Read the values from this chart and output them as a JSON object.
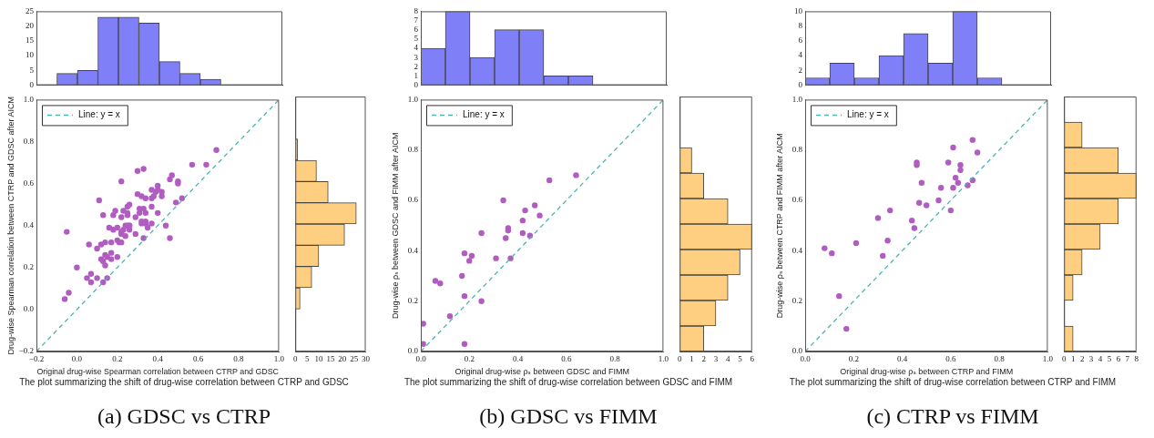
{
  "chart_data": [
    {
      "type": "histogram",
      "bins": [
        -0.2,
        -0.1,
        0.0,
        0.1,
        0.2,
        0.3,
        0.4,
        0.5,
        0.6,
        0.7
      ],
      "values": [
        0,
        4,
        5,
        23,
        23,
        21,
        8,
        4,
        2
      ],
      "color": "#7f7ff7",
      "xlim": [
        -0.2,
        1.0
      ],
      "ylim": [
        0,
        25
      ],
      "yticks": [
        0,
        5,
        10,
        15,
        20,
        25
      ],
      "tick_labels": "y"
    },
    {
      "type": "scatter",
      "xlabel": "Original drug-wise Spearman correlation between CTRP and GDSC",
      "ylabel": "Drug-wise Spearman correlation between CTRP and GDSC after AICM",
      "xlim": [
        -0.2,
        1.0
      ],
      "ylim": [
        -0.2,
        1.0
      ],
      "xticks": [
        {
          "value": -0.2,
          "label": "−0.2"
        },
        {
          "value": 0,
          "label": "0.0"
        },
        0.2,
        0.4,
        0.6,
        0.8,
        {
          "value": 1,
          "label": "1.0"
        }
      ],
      "yticks": [
        {
          "value": -0.2,
          "label": "−0.2"
        },
        {
          "value": 0,
          "label": "0.0"
        },
        0.2,
        0.4,
        0.6,
        0.8,
        {
          "value": 1,
          "label": "1.0"
        }
      ],
      "legend": "top left",
      "series": [
        {
          "type": "scatter",
          "color": "#b05cc0",
          "marker": "circle",
          "x": [
            -0.06,
            -0.04,
            -0.05,
            0.0,
            0.05,
            0.07,
            0.07,
            0.06,
            0.1,
            0.1,
            0.12,
            0.11,
            0.13,
            0.14,
            0.12,
            0.13,
            0.13,
            0.14,
            0.14,
            0.15,
            0.15,
            0.16,
            0.17,
            0.17,
            0.17,
            0.18,
            0.18,
            0.19,
            0.2,
            0.2,
            0.2,
            0.21,
            0.22,
            0.22,
            0.22,
            0.22,
            0.22,
            0.23,
            0.23,
            0.24,
            0.24,
            0.25,
            0.25,
            0.25,
            0.25,
            0.26,
            0.26,
            0.26,
            0.26,
            0.29,
            0.29,
            0.3,
            0.3,
            0.31,
            0.31,
            0.32,
            0.32,
            0.32,
            0.33,
            0.33,
            0.33,
            0.34,
            0.34,
            0.34,
            0.34,
            0.35,
            0.37,
            0.37,
            0.37,
            0.37,
            0.38,
            0.39,
            0.4,
            0.4,
            0.4,
            0.42,
            0.42,
            0.44,
            0.46,
            0.47,
            0.46,
            0.49,
            0.5,
            0.5,
            0.52,
            0.57,
            0.64,
            0.69
          ],
          "values": [
            0.05,
            0.08,
            0.37,
            0.2,
            0.15,
            0.17,
            0.13,
            0.31,
            0.15,
            0.29,
            0.31,
            0.52,
            0.45,
            0.32,
            0.24,
            0.13,
            0.23,
            0.26,
            0.21,
            0.25,
            0.15,
            0.39,
            0.32,
            0.27,
            0.24,
            0.45,
            0.38,
            0.47,
            0.39,
            0.33,
            0.25,
            0.32,
            0.61,
            0.44,
            0.36,
            0.37,
            0.32,
            0.47,
            0.38,
            0.4,
            0.35,
            0.49,
            0.46,
            0.45,
            0.4,
            0.4,
            0.38,
            0.5,
            0.4,
            0.44,
            0.36,
            0.66,
            0.55,
            0.48,
            0.46,
            0.54,
            0.41,
            0.42,
            0.48,
            0.34,
            0.67,
            0.46,
            0.53,
            0.42,
            0.41,
            0.39,
            0.57,
            0.49,
            0.41,
            0.53,
            0.54,
            0.56,
            0.59,
            0.57,
            0.46,
            0.56,
            0.54,
            0.4,
            0.62,
            0.64,
            0.34,
            0.51,
            0.61,
            0.6,
            0.53,
            0.69,
            0.69,
            0.76
          ]
        },
        {
          "type": "line",
          "name": "Line: y = x",
          "color": "#4db3b3",
          "marker": "none",
          "line_style": "dashed",
          "x": [
            -0.2,
            1.0
          ],
          "values": [
            -0.2,
            1.0
          ]
        }
      ],
      "annotations": [
        "The plot summarizing the shift of drug-wise correlation between CTRP and GDSC",
        "(a) GDSC vs CTRP"
      ]
    },
    {
      "type": "histogram",
      "orientation": "horizontal",
      "bins": [
        0.0,
        0.1,
        0.2,
        0.3,
        0.4,
        0.5,
        0.6,
        0.7,
        0.8
      ],
      "values": [
        2,
        7,
        10,
        21,
        26,
        14,
        9,
        1
      ],
      "color": "#fecf80",
      "ylim": [
        -0.2,
        1.0
      ],
      "xlim": [
        0,
        30
      ],
      "xticks": [
        0,
        5,
        10,
        15,
        20,
        25,
        30
      ],
      "tick_labels": "x"
    },
    {
      "type": "histogram",
      "bins": [
        0.0,
        0.1,
        0.2,
        0.3,
        0.4,
        0.5,
        0.6,
        0.7
      ],
      "values": [
        4,
        8,
        3,
        6,
        6,
        1,
        1
      ],
      "color": "#7f7ff7",
      "xlim": [
        0.0,
        1.0
      ],
      "ylim": [
        0,
        8
      ],
      "yticks": [
        0,
        1,
        2,
        3,
        4,
        5,
        6,
        7,
        8
      ],
      "tick_labels": "y"
    },
    {
      "type": "scatter",
      "xlabel": "Original drug-wise ρₛ between GDSC and FIMM",
      "ylabel": "Drug-wise ρₛ between GDSC and FIMM after AICM",
      "xlim": [
        0.0,
        1.0
      ],
      "ylim": [
        0.0,
        1.0
      ],
      "xticks": [
        {
          "value": 0,
          "label": "0.0"
        },
        0.2,
        0.4,
        0.6,
        0.8,
        {
          "value": 1,
          "label": "1.0"
        }
      ],
      "yticks": [
        {
          "value": 0,
          "label": "0.0"
        },
        0.2,
        0.4,
        0.6,
        0.8,
        {
          "value": 1,
          "label": "1.0"
        }
      ],
      "legend": "top left",
      "series": [
        {
          "type": "scatter",
          "color": "#b05cc0",
          "marker": "circle",
          "x": [
            0.01,
            0.01,
            0.06,
            0.08,
            0.12,
            0.18,
            0.17,
            0.18,
            0.18,
            0.2,
            0.21,
            0.25,
            0.25,
            0.31,
            0.34,
            0.35,
            0.36,
            0.36,
            0.37,
            0.42,
            0.42,
            0.43,
            0.45,
            0.47,
            0.49,
            0.53,
            0.64
          ],
          "values": [
            0.03,
            0.11,
            0.28,
            0.27,
            0.14,
            0.03,
            0.3,
            0.22,
            0.39,
            0.36,
            0.38,
            0.2,
            0.47,
            0.37,
            0.6,
            0.45,
            0.49,
            0.48,
            0.37,
            0.52,
            0.47,
            0.56,
            0.46,
            0.58,
            0.54,
            0.68,
            0.7
          ]
        },
        {
          "type": "line",
          "name": "Line: y = x",
          "color": "#4db3b3",
          "marker": "none",
          "line_style": "dashed",
          "x": [
            0.0,
            1.0
          ],
          "values": [
            0.0,
            1.0
          ]
        }
      ],
      "annotations": [
        "The plot summarizing the shift of drug-wise correlation between GDSC and FIMM",
        "(b) GDSC vs FIMM"
      ]
    },
    {
      "type": "histogram",
      "orientation": "horizontal",
      "bins": [
        0.0,
        0.1,
        0.2,
        0.3,
        0.4,
        0.5,
        0.6,
        0.7,
        0.8
      ],
      "values": [
        2,
        3,
        4,
        5,
        6,
        4,
        2,
        1
      ],
      "color": "#fecf80",
      "ylim": [
        0.0,
        1.0
      ],
      "xlim": [
        0,
        6
      ],
      "xticks": [
        0,
        1,
        2,
        3,
        4,
        5,
        6
      ],
      "tick_labels": "x"
    },
    {
      "type": "histogram",
      "bins": [
        0.0,
        0.1,
        0.2,
        0.3,
        0.4,
        0.5,
        0.6,
        0.7,
        0.8
      ],
      "values": [
        1,
        3,
        1,
        4,
        7,
        3,
        10,
        1
      ],
      "color": "#7f7ff7",
      "xlim": [
        0.0,
        1.0
      ],
      "ylim": [
        0,
        10
      ],
      "yticks": [
        0,
        2,
        4,
        6,
        8,
        10
      ],
      "tick_labels": "y"
    },
    {
      "type": "scatter",
      "xlabel": "Original drug-wise ρₛ between CTRP and FIMM",
      "ylabel": "Drug-wise ρₛ between CTRP and FIMM after AICM",
      "xlim": [
        0.0,
        1.0
      ],
      "ylim": [
        0.0,
        1.0
      ],
      "xticks": [
        {
          "value": 0,
          "label": "0.0"
        },
        0.2,
        0.4,
        0.6,
        0.8,
        {
          "value": 1,
          "label": "1.0"
        }
      ],
      "yticks": [
        {
          "value": 0,
          "label": "0.0"
        },
        0.2,
        0.4,
        0.6,
        0.8,
        {
          "value": 1,
          "label": "1.0"
        }
      ],
      "legend": "top left",
      "series": [
        {
          "type": "scatter",
          "color": "#b05cc0",
          "marker": "circle",
          "x": [
            0.08,
            0.11,
            0.14,
            0.17,
            0.21,
            0.3,
            0.32,
            0.34,
            0.35,
            0.44,
            0.45,
            0.46,
            0.46,
            0.48,
            0.47,
            0.5,
            0.55,
            0.56,
            0.59,
            0.6,
            0.61,
            0.61,
            0.62,
            0.63,
            0.64,
            0.64,
            0.67,
            0.69,
            0.69,
            0.71
          ],
          "values": [
            0.41,
            0.39,
            0.22,
            0.09,
            0.43,
            0.53,
            0.38,
            0.44,
            0.56,
            0.52,
            0.49,
            0.75,
            0.74,
            0.67,
            0.59,
            0.58,
            0.6,
            0.65,
            0.75,
            0.56,
            0.65,
            0.81,
            0.69,
            0.67,
            0.74,
            0.72,
            0.66,
            0.68,
            0.84,
            0.79
          ]
        },
        {
          "type": "line",
          "name": "Line: y = x",
          "color": "#4db3b3",
          "marker": "none",
          "line_style": "dashed",
          "x": [
            0.0,
            1.0
          ],
          "values": [
            0.0,
            1.0
          ]
        }
      ],
      "annotations": [
        "The plot summarizing the shift of drug-wise correlation between CTRP and FIMM",
        "(c) CTRP vs FIMM"
      ]
    },
    {
      "type": "histogram",
      "orientation": "horizontal",
      "bins": [
        0.0,
        0.1,
        0.2,
        0.3,
        0.4,
        0.5,
        0.6,
        0.7,
        0.8,
        0.9
      ],
      "values": [
        1,
        0,
        1,
        2,
        4,
        6,
        8,
        6,
        2
      ],
      "color": "#fecf80",
      "ylim": [
        0.0,
        1.0
      ],
      "xlim": [
        0,
        8
      ],
      "xticks": [
        0,
        1,
        2,
        3,
        4,
        5,
        6,
        7,
        8
      ],
      "tick_labels": "x"
    }
  ]
}
